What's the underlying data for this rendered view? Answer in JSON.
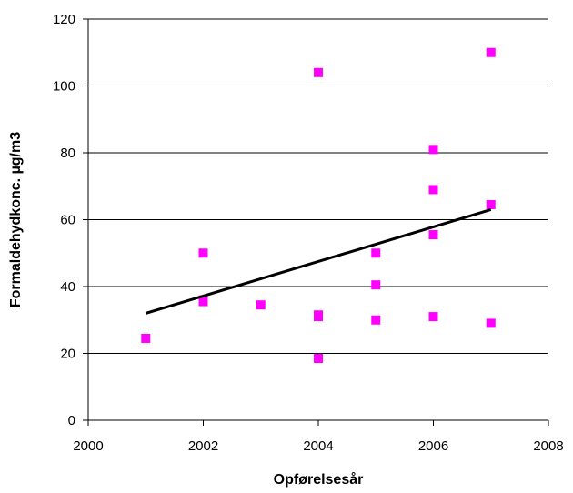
{
  "chart_data": {
    "type": "scatter",
    "title": "",
    "xlabel": "Opførelsesår",
    "ylabel": "Formaldehydkonc. µg/m3",
    "xlim": [
      2000,
      2008
    ],
    "ylim": [
      0,
      120
    ],
    "xticks": [
      2000,
      2002,
      2004,
      2006,
      2008
    ],
    "yticks": [
      0,
      20,
      40,
      60,
      80,
      100,
      120
    ],
    "grid": "horizontal",
    "legend": "none",
    "colors": {
      "points": "#ff00ff",
      "trendline": "#000000"
    },
    "series": [
      {
        "points": [
          {
            "x": 2001,
            "y": 24.5
          },
          {
            "x": 2002,
            "y": 50
          },
          {
            "x": 2002,
            "y": 36
          },
          {
            "x": 2002,
            "y": 35.5
          },
          {
            "x": 2003,
            "y": 34.5
          },
          {
            "x": 2004,
            "y": 104
          },
          {
            "x": 2004,
            "y": 31.5
          },
          {
            "x": 2004,
            "y": 31
          },
          {
            "x": 2004,
            "y": 18.5
          },
          {
            "x": 2005,
            "y": 50
          },
          {
            "x": 2005,
            "y": 40.5
          },
          {
            "x": 2005,
            "y": 30
          },
          {
            "x": 2006,
            "y": 81
          },
          {
            "x": 2006,
            "y": 69
          },
          {
            "x": 2006,
            "y": 55.5
          },
          {
            "x": 2006,
            "y": 31
          },
          {
            "x": 2007,
            "y": 110
          },
          {
            "x": 2007,
            "y": 64.5
          },
          {
            "x": 2007,
            "y": 29
          }
        ]
      }
    ],
    "trendline": {
      "x": [
        2001,
        2007
      ],
      "y": [
        32,
        63
      ]
    }
  }
}
